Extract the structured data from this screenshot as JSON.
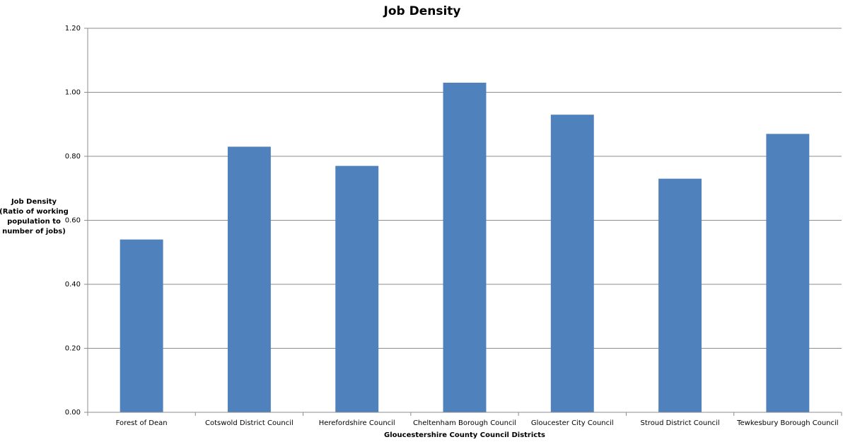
{
  "chart_data": {
    "type": "bar",
    "title": "Job Density",
    "x_label": "Gloucestershire County Council Districts",
    "y_label": [
      "Job Density",
      "(Ratio of working",
      "population to",
      "number of jobs)"
    ],
    "categories": [
      "Forest of Dean",
      "Cotswold District Council",
      "Herefordshire Council",
      "Cheltenham Borough Council",
      "Gloucester City Council",
      "Stroud District Council",
      "Tewkesbury Borough Council"
    ],
    "values": [
      0.54,
      0.83,
      0.77,
      1.03,
      0.93,
      0.73,
      0.87
    ],
    "color": "#4f81bd",
    "ylim": [
      0,
      1.2
    ],
    "yticks": [
      {
        "value": 0,
        "label": "0.00"
      },
      {
        "value": 0.2,
        "label": "0.20"
      },
      {
        "value": 0.4,
        "label": "0.40"
      },
      {
        "value": 0.6,
        "label": "0.60"
      },
      {
        "value": 0.8,
        "label": "0.80"
      },
      {
        "value": 1.0,
        "label": "1.00"
      },
      {
        "value": 1.2,
        "label": "1.20"
      }
    ],
    "grid": true
  }
}
